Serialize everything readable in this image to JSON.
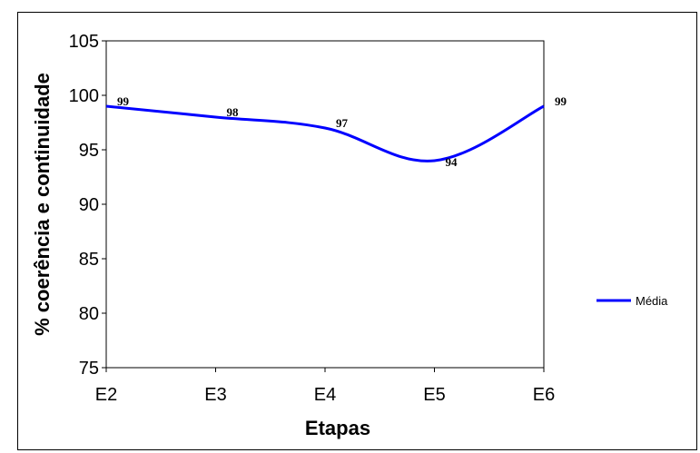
{
  "chart_data": {
    "type": "line",
    "categories": [
      "E2",
      "E3",
      "E4",
      "E5",
      "E6"
    ],
    "series": [
      {
        "name": "Média",
        "values": [
          99,
          98,
          97,
          94,
          99
        ],
        "color": "#0000ff"
      }
    ],
    "data_labels": [
      "99",
      "98",
      "97",
      "94",
      "99"
    ],
    "xlabel": "Etapas",
    "ylabel": "% coerência e continuidade",
    "ylim": [
      75,
      105
    ],
    "yticks": [
      75,
      80,
      85,
      90,
      95,
      100,
      105
    ],
    "legend_position": "right",
    "grid": false,
    "smooth": true
  }
}
